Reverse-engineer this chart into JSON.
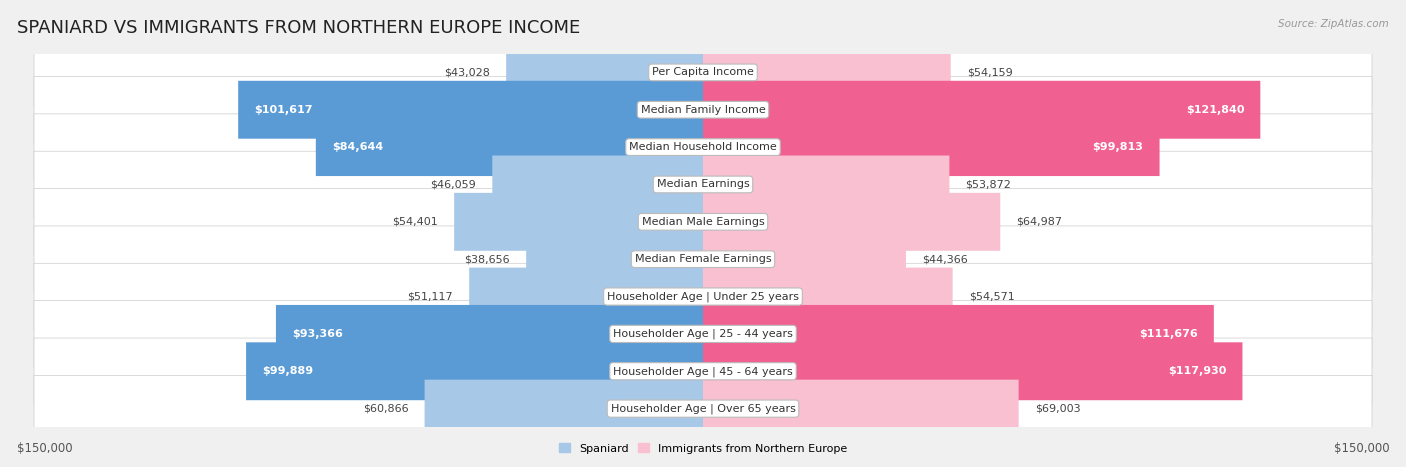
{
  "title": "SPANIARD VS IMMIGRANTS FROM NORTHERN EUROPE INCOME",
  "source": "Source: ZipAtlas.com",
  "categories": [
    "Per Capita Income",
    "Median Family Income",
    "Median Household Income",
    "Median Earnings",
    "Median Male Earnings",
    "Median Female Earnings",
    "Householder Age | Under 25 years",
    "Householder Age | 25 - 44 years",
    "Householder Age | 45 - 64 years",
    "Householder Age | Over 65 years"
  ],
  "spaniard_values": [
    43028,
    101617,
    84644,
    46059,
    54401,
    38656,
    51117,
    93366,
    99889,
    60866
  ],
  "immigrant_values": [
    54159,
    121840,
    99813,
    53872,
    64987,
    44366,
    54571,
    111676,
    117930,
    69003
  ],
  "spaniard_labels": [
    "$43,028",
    "$101,617",
    "$84,644",
    "$46,059",
    "$54,401",
    "$38,656",
    "$51,117",
    "$93,366",
    "$99,889",
    "$60,866"
  ],
  "immigrant_labels": [
    "$54,159",
    "$121,840",
    "$99,813",
    "$53,872",
    "$64,987",
    "$44,366",
    "$54,571",
    "$111,676",
    "$117,930",
    "$69,003"
  ],
  "max_value": 150000,
  "blue_light": "#a8c8e8",
  "blue_dark": "#5b9bd5",
  "pink_light": "#f8c0d0",
  "pink_dark": "#f06090",
  "blue_label": "Spaniard",
  "pink_label": "Immigrants from Northern Europe",
  "background_color": "#f0f0f0",
  "row_bg_color": "#ffffff",
  "title_fontsize": 13,
  "value_fontsize": 8.0,
  "category_fontsize": 8.0,
  "axis_label_fontsize": 8.5,
  "inside_threshold": 75000
}
